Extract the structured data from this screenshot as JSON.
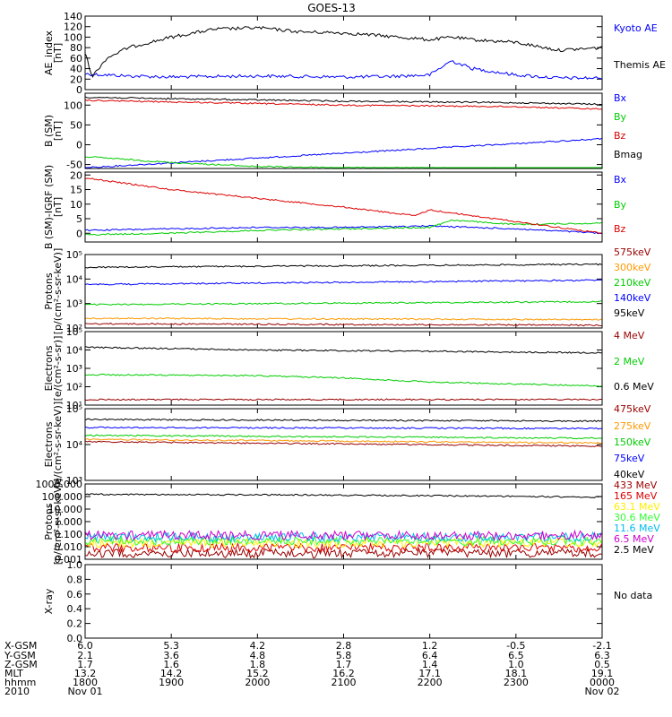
{
  "title": "GOES-13",
  "colors": {
    "black": "#000000",
    "blue": "#0000ff",
    "green": "#00cc00",
    "red": "#dd0000",
    "orange": "#ff9900",
    "darkred": "#990000",
    "yellow": "#ffee00",
    "cyan": "#00bbee",
    "purple": "#cc00cc",
    "lightgreen": "#33ff33"
  },
  "chart_data": [
    {
      "type": "line",
      "ylabel": "AE_index",
      "unit": "[nT]",
      "ylim": [
        0,
        140
      ],
      "yticks": [
        "0",
        "20",
        "40",
        "60",
        "80",
        "100",
        "120",
        "140"
      ],
      "series": [
        {
          "name": "Kyoto AE",
          "color": "#0000ff",
          "x": [
            "1800",
            "1815",
            "1830",
            "1900",
            "1930",
            "2000",
            "2030",
            "2100",
            "2130",
            "2200",
            "2215",
            "2230",
            "2300",
            "2330",
            "0000"
          ],
          "values": [
            30,
            28,
            26,
            24,
            25,
            26,
            25,
            24,
            25,
            28,
            55,
            40,
            28,
            22,
            22
          ]
        },
        {
          "name": "Themis AE",
          "color": "#000000",
          "x": [
            "1800",
            "1805",
            "1815",
            "1830",
            "1900",
            "1930",
            "2000",
            "2030",
            "2100",
            "2130",
            "2200",
            "2215",
            "2230",
            "2300",
            "2330",
            "0000"
          ],
          "values": [
            70,
            25,
            60,
            80,
            100,
            115,
            118,
            110,
            108,
            102,
            95,
            100,
            95,
            90,
            75,
            80
          ]
        }
      ]
    },
    {
      "type": "line",
      "ylabel": "B (SM)",
      "unit": "[nT]",
      "ylim": [
        -60,
        130
      ],
      "yticks": [
        "-50",
        "0",
        "50",
        "100"
      ],
      "series": [
        {
          "name": "Bx",
          "color": "#0000ff",
          "x": [
            "1800",
            "0000"
          ],
          "values": [
            -58,
            15
          ]
        },
        {
          "name": "By",
          "color": "#00cc00",
          "x": [
            "1800",
            "1900",
            "2000",
            "2100",
            "0000"
          ],
          "values": [
            -30,
            -45,
            -55,
            -58,
            -60
          ]
        },
        {
          "name": "Bz",
          "color": "#dd0000",
          "x": [
            "1800",
            "1900",
            "2000",
            "2100",
            "2200",
            "2300",
            "0000"
          ],
          "values": [
            112,
            108,
            104,
            100,
            98,
            96,
            90
          ]
        },
        {
          "name": "Bmag",
          "color": "#000000",
          "x": [
            "1800",
            "1900",
            "2000",
            "2100",
            "2200",
            "2300",
            "0000"
          ],
          "values": [
            120,
            116,
            113,
            110,
            108,
            106,
            102
          ]
        }
      ]
    },
    {
      "type": "line",
      "ylabel": "B (SM)-IGRF (SM)",
      "unit": "[nT]",
      "ylim": [
        -3,
        21
      ],
      "yticks": [
        "-5",
        "0",
        "5",
        "10",
        "15",
        "20"
      ],
      "series": [
        {
          "name": "Bx",
          "color": "#0000ff",
          "x": [
            "1800",
            "1900",
            "2000",
            "2100",
            "2200",
            "2300",
            "0000"
          ],
          "values": [
            1,
            1.5,
            2,
            2,
            2.5,
            1.5,
            0
          ]
        },
        {
          "name": "By",
          "color": "#00cc00",
          "x": [
            "1800",
            "1900",
            "2000",
            "2100",
            "2200",
            "2215",
            "2300",
            "0000"
          ],
          "values": [
            -0.5,
            0,
            1,
            1.5,
            2,
            4.5,
            3,
            3.5
          ]
        },
        {
          "name": "Bz",
          "color": "#dd0000",
          "x": [
            "1800",
            "1830",
            "1900",
            "1930",
            "2000",
            "2100",
            "2150",
            "2200",
            "2300",
            "2330",
            "0000"
          ],
          "values": [
            19,
            17,
            15,
            13.5,
            12,
            9,
            6,
            8,
            4,
            2,
            0
          ]
        }
      ]
    },
    {
      "type": "line",
      "ylabel": "Protons",
      "unit": "[p/(cm²-s-sr-keV)]",
      "ylim": [
        100,
        100000
      ],
      "yscale": "log",
      "yticks": [
        "10²",
        "10³",
        "10⁴",
        "10⁵"
      ],
      "series": [
        {
          "name": "575keV",
          "color": "#990000",
          "x": [
            "1800",
            "0000"
          ],
          "values": [
            150,
            130
          ]
        },
        {
          "name": "300keV",
          "color": "#ff9900",
          "x": [
            "1800",
            "0000"
          ],
          "values": [
            250,
            220
          ]
        },
        {
          "name": "210keV",
          "color": "#00cc00",
          "x": [
            "1800",
            "0000"
          ],
          "values": [
            900,
            1200
          ]
        },
        {
          "name": "140keV",
          "color": "#0000ff",
          "x": [
            "1800",
            "0000"
          ],
          "values": [
            6000,
            9000
          ]
        },
        {
          "name": "95keV",
          "color": "#000000",
          "x": [
            "1800",
            "0000"
          ],
          "values": [
            30000,
            40000
          ]
        }
      ]
    },
    {
      "type": "line",
      "ylabel": "Electrons",
      "unit": "[e/(cm²-s-sr)]",
      "ylim": [
        10,
        100000
      ],
      "yscale": "log",
      "yticks": [
        "10¹",
        "10²",
        "10³",
        "10⁴",
        "10⁵"
      ],
      "series": [
        {
          "name": "4 MeV",
          "color": "#990000",
          "x": [
            "1800",
            "0000"
          ],
          "values": [
            20,
            20
          ]
        },
        {
          "name": "2 MeV",
          "color": "#00cc00",
          "x": [
            "1800",
            "2000",
            "2100",
            "2200",
            "0000"
          ],
          "values": [
            450,
            400,
            300,
            180,
            110
          ]
        },
        {
          "name": "0.6 MeV",
          "color": "#000000",
          "x": [
            "1800",
            "2000",
            "2200",
            "0000"
          ],
          "values": [
            14000,
            10000,
            8500,
            7000
          ]
        }
      ]
    },
    {
      "type": "line",
      "ylabel": "Electrons",
      "unit": "[e/(cm²-s-sr-keV)]",
      "ylim": [
        1000,
        100000
      ],
      "yscale": "log",
      "yticks": [
        "10³",
        "10⁴",
        "10⁵"
      ],
      "series": [
        {
          "name": "475keV",
          "color": "#990000",
          "x": [
            "1800",
            "0000"
          ],
          "values": [
            12000,
            9000
          ]
        },
        {
          "name": "275keV",
          "color": "#ff9900",
          "x": [
            "1800",
            "0000"
          ],
          "values": [
            14000,
            11000
          ]
        },
        {
          "name": "150keV",
          "color": "#00cc00",
          "x": [
            "1800",
            "0000"
          ],
          "values": [
            18000,
            15000
          ]
        },
        {
          "name": "75keV",
          "color": "#0000ff",
          "x": [
            "1800",
            "0000"
          ],
          "values": [
            30000,
            28000
          ]
        },
        {
          "name": "40keV",
          "color": "#000000",
          "x": [
            "1800",
            "0000"
          ],
          "values": [
            50000,
            45000
          ]
        }
      ]
    },
    {
      "type": "line",
      "ylabel": "Protons",
      "unit": "[p/(cm²-s-sr-keV)]",
      "ylim": [
        0.001,
        1000
      ],
      "yscale": "log",
      "yticks": [
        "0.001",
        "0.010",
        "0.100",
        "1.000",
        "10.000",
        "100.000",
        "1000.000"
      ],
      "series": [
        {
          "name": "433 MeV",
          "color": "#990000",
          "x": [
            "1800",
            "0000"
          ],
          "values": [
            0.003,
            0.003
          ]
        },
        {
          "name": "165 MeV",
          "color": "#dd0000",
          "x": [
            "1800",
            "0000"
          ],
          "values": [
            0.008,
            0.008
          ]
        },
        {
          "name": "63.1 MeV",
          "color": "#ffee00",
          "x": [
            "1800",
            "0000"
          ],
          "values": [
            0.02,
            0.02
          ]
        },
        {
          "name": "30.6 MeV",
          "color": "#33ff33",
          "x": [
            "1800",
            "0000"
          ],
          "values": [
            0.03,
            0.03
          ]
        },
        {
          "name": "11.6 MeV",
          "color": "#00bbee",
          "x": [
            "1800",
            "0000"
          ],
          "values": [
            0.06,
            0.06
          ]
        },
        {
          "name": "6.5 MeV",
          "color": "#cc00cc",
          "x": [
            "1800",
            "0000"
          ],
          "values": [
            0.08,
            0.08
          ]
        },
        {
          "name": "2.5 MeV",
          "color": "#000000",
          "x": [
            "1800",
            "2100",
            "0000"
          ],
          "values": [
            150,
            130,
            90
          ]
        }
      ]
    },
    {
      "type": "line",
      "ylabel": "X-ray",
      "unit": "",
      "ylim": [
        0,
        1
      ],
      "yticks": [
        "0.0",
        "0.2",
        "0.4",
        "0.6",
        "0.8",
        "1.0"
      ],
      "series": [],
      "note": "No data"
    }
  ],
  "xaxis": {
    "row_labels": [
      "X-GSM",
      "Y-GSM",
      "Z-GSM",
      "MLT",
      "hhmm",
      "2010"
    ],
    "columns": [
      [
        "6.0",
        "2.1",
        "1.7",
        "13.2",
        "1800",
        "Nov 01"
      ],
      [
        "5.3",
        "3.6",
        "1.6",
        "14.2",
        "1900",
        ""
      ],
      [
        "4.2",
        "4.8",
        "1.8",
        "15.2",
        "2000",
        ""
      ],
      [
        "2.8",
        "5.8",
        "1.7",
        "16.2",
        "2100",
        ""
      ],
      [
        "1.2",
        "6.4",
        "1.4",
        "17.1",
        "2200",
        ""
      ],
      [
        "-0.5",
        "6.5",
        "1.0",
        "18.1",
        "2300",
        ""
      ],
      [
        "-2.1",
        "6.3",
        "0.5",
        "19.1",
        "0000",
        "Nov 02"
      ]
    ]
  }
}
